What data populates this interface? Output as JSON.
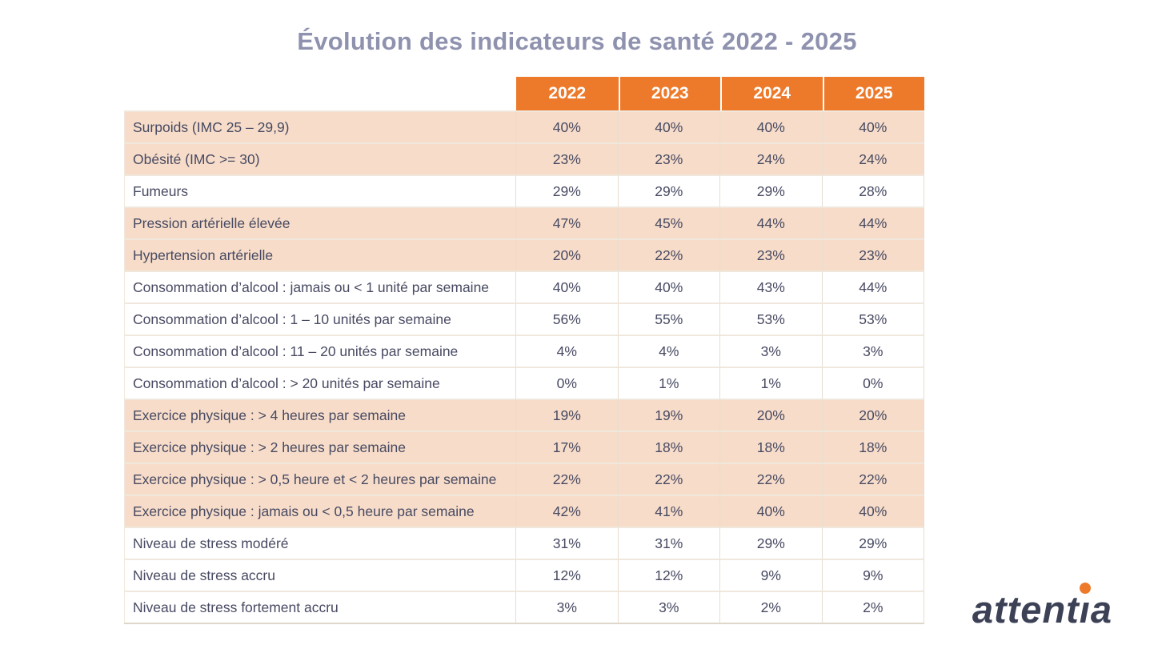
{
  "title": "Évolution des indicateurs de santé 2022 - 2025",
  "logo": {
    "text": "attentia"
  },
  "colors": {
    "header_bg": "#ED7A2B",
    "row_shaded": "#F7DCC9",
    "row_plain": "#FFFFFF",
    "text": "#474A62",
    "title": "#8F92AE",
    "logo_text": "#3C4156",
    "logo_dot": "#ED7A2B"
  },
  "chart_data": {
    "type": "table",
    "title": "Évolution des indicateurs de santé 2022 - 2025",
    "columns": [
      "2022",
      "2023",
      "2024",
      "2025"
    ],
    "rows": [
      {
        "label": "Surpoids (IMC 25 – 29,9)",
        "values": [
          "40%",
          "40%",
          "40%",
          "40%"
        ],
        "shaded": true
      },
      {
        "label": "Obésité (IMC >= 30)",
        "values": [
          "23%",
          "23%",
          "24%",
          "24%"
        ],
        "shaded": true
      },
      {
        "label": "Fumeurs",
        "values": [
          "29%",
          "29%",
          "29%",
          "28%"
        ],
        "shaded": false
      },
      {
        "label": "Pression artérielle élevée",
        "values": [
          "47%",
          "45%",
          "44%",
          "44%"
        ],
        "shaded": true
      },
      {
        "label": "Hypertension artérielle",
        "values": [
          "20%",
          "22%",
          "23%",
          "23%"
        ],
        "shaded": true
      },
      {
        "label": "Consommation d’alcool : jamais ou < 1 unité par semaine",
        "values": [
          "40%",
          "40%",
          "43%",
          "44%"
        ],
        "shaded": false
      },
      {
        "label": "Consommation d’alcool : 1 – 10 unités par semaine",
        "values": [
          "56%",
          "55%",
          "53%",
          "53%"
        ],
        "shaded": false
      },
      {
        "label": "Consommation d’alcool : 11 – 20 unités par semaine",
        "values": [
          "4%",
          "4%",
          "3%",
          "3%"
        ],
        "shaded": false
      },
      {
        "label": "Consommation d’alcool : > 20 unités par semaine",
        "values": [
          "0%",
          "1%",
          "1%",
          "0%"
        ],
        "shaded": false
      },
      {
        "label": "Exercice physique : > 4 heures par semaine",
        "values": [
          "19%",
          "19%",
          "20%",
          "20%"
        ],
        "shaded": true
      },
      {
        "label": "Exercice physique : > 2 heures par semaine",
        "values": [
          "17%",
          "18%",
          "18%",
          "18%"
        ],
        "shaded": true
      },
      {
        "label": "Exercice physique : > 0,5 heure et < 2 heures par semaine",
        "values": [
          "22%",
          "22%",
          "22%",
          "22%"
        ],
        "shaded": true
      },
      {
        "label": "Exercice physique : jamais ou < 0,5 heure par semaine",
        "values": [
          "42%",
          "41%",
          "40%",
          "40%"
        ],
        "shaded": true
      },
      {
        "label": "Niveau de stress modéré",
        "values": [
          "31%",
          "31%",
          "29%",
          "29%"
        ],
        "shaded": false
      },
      {
        "label": "Niveau de stress accru",
        "values": [
          "12%",
          "12%",
          "9%",
          "9%"
        ],
        "shaded": false
      },
      {
        "label": "Niveau de stress fortement accru",
        "values": [
          "3%",
          "3%",
          "2%",
          "2%"
        ],
        "shaded": false
      }
    ]
  }
}
